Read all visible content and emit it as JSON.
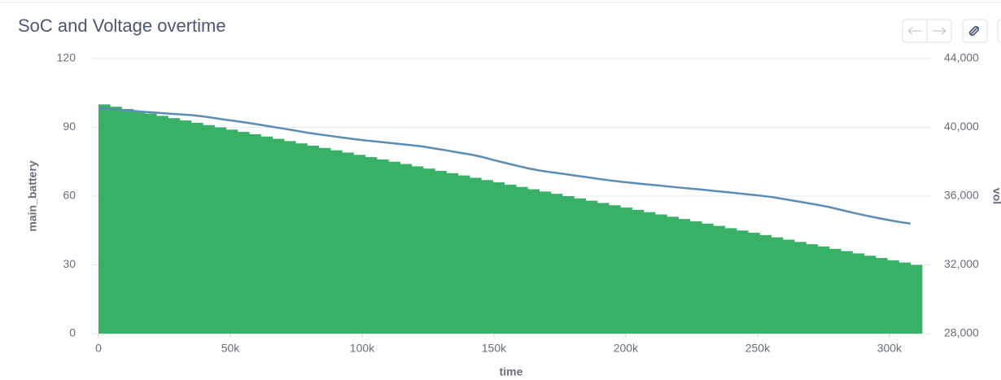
{
  "chart_data": {
    "type": "combo",
    "title": "SoC and Voltage overtime",
    "x_label": "time",
    "y_label": "main_battery",
    "y2_label": "vol",
    "x": [
      0,
      4400,
      8800,
      13200,
      17600,
      22000,
      26400,
      30800,
      35200,
      39600,
      44000,
      48400,
      52800,
      57200,
      61600,
      66000,
      70400,
      74800,
      79200,
      83600,
      88000,
      92400,
      96800,
      101200,
      105600,
      110000,
      114400,
      118800,
      123200,
      127600,
      132000,
      136400,
      140800,
      145200,
      149600,
      154000,
      158400,
      162800,
      167200,
      171600,
      176000,
      180400,
      184800,
      189200,
      193600,
      198000,
      202400,
      206800,
      211200,
      215600,
      220000,
      224400,
      228800,
      233200,
      237600,
      242000,
      246400,
      250800,
      255200,
      259600,
      264000,
      268400,
      272800,
      277200,
      281600,
      286000,
      290400,
      294800,
      299200,
      303600,
      308000
    ],
    "series": [
      {
        "type": "bar",
        "color": "#38b066",
        "values": [
          100,
          99,
          98,
          97,
          96,
          95,
          94,
          93,
          92,
          91,
          90,
          89,
          88,
          87,
          86,
          85,
          84,
          83,
          82,
          81,
          80,
          79,
          78,
          77,
          76,
          75,
          74,
          73,
          72,
          71,
          70,
          69,
          68,
          67,
          66,
          65,
          64,
          63,
          62,
          61,
          60,
          59,
          58,
          57,
          56,
          55,
          54,
          53,
          52,
          51,
          50,
          49,
          48,
          47,
          46,
          45,
          44,
          43,
          42,
          41,
          40,
          39,
          38,
          37,
          36,
          35,
          34,
          33,
          32,
          31,
          30
        ]
      },
      {
        "type": "line",
        "axis": "y2",
        "color": "#5b8db2",
        "values": [
          41100,
          41050,
          41000,
          40950,
          40900,
          40850,
          40800,
          40760,
          40710,
          40640,
          40540,
          40440,
          40350,
          40250,
          40140,
          40030,
          39920,
          39810,
          39690,
          39590,
          39500,
          39410,
          39320,
          39240,
          39170,
          39100,
          39030,
          38960,
          38880,
          38770,
          38660,
          38540,
          38430,
          38290,
          38110,
          37940,
          37780,
          37620,
          37490,
          37390,
          37300,
          37200,
          37110,
          37010,
          36920,
          36840,
          36770,
          36700,
          36640,
          36570,
          36500,
          36440,
          36380,
          36310,
          36240,
          36170,
          36100,
          36030,
          35950,
          35840,
          35720,
          35610,
          35490,
          35360,
          35200,
          35040,
          34890,
          34750,
          34620,
          34500,
          34400
        ]
      }
    ],
    "xlim": [
      0,
      313000
    ],
    "xticks": [
      0,
      {
        "value": 50000,
        "label": "50k"
      },
      {
        "value": 100000,
        "label": "100k"
      },
      {
        "value": 150000,
        "label": "150k"
      },
      {
        "value": 200000,
        "label": "200k"
      },
      {
        "value": 250000,
        "label": "250k"
      },
      {
        "value": 300000,
        "label": "300k"
      }
    ],
    "ylim": [
      0,
      120
    ],
    "yticks": [
      0,
      30,
      60,
      90,
      120
    ],
    "y2lim": [
      28000,
      44000
    ],
    "y2ticks": [
      {
        "value": 28000,
        "label": "28,000"
      },
      {
        "value": 32000,
        "label": "32,000"
      },
      {
        "value": 36000,
        "label": "36,000"
      },
      {
        "value": 40000,
        "label": "40,000"
      },
      {
        "value": 44000,
        "label": "44,000"
      }
    ],
    "grid": true
  }
}
